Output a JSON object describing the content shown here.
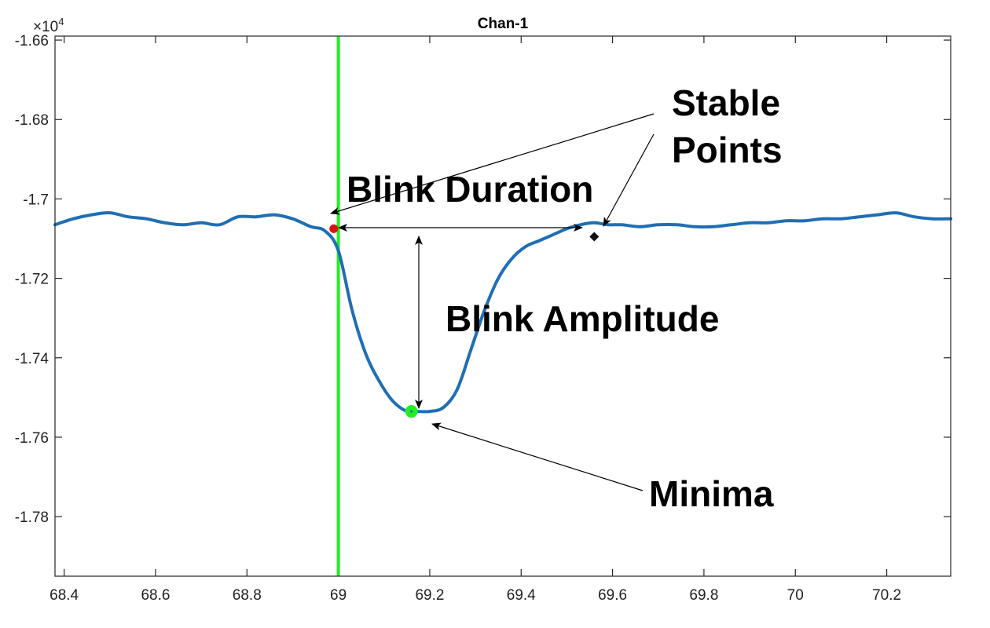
{
  "chart_data": {
    "type": "line",
    "title": "Chan-1",
    "xlabel": "",
    "ylabel": "",
    "xlim": [
      68.38,
      70.34
    ],
    "ylim": [
      -17.95,
      -16.59
    ],
    "y_scale_note": "×10",
    "y_scale_exponent": "4",
    "x_ticks": [
      68.4,
      68.6,
      68.8,
      69.0,
      69.2,
      69.4,
      69.6,
      69.8,
      70.0,
      70.2
    ],
    "x_tick_labels": [
      "68.4",
      "68.6",
      "68.8",
      "69",
      "69.2",
      "69.4",
      "69.6",
      "69.8",
      "70",
      "70.2"
    ],
    "y_ticks": [
      -16.6,
      -16.8,
      -17.0,
      -17.2,
      -17.4,
      -17.6,
      -17.8
    ],
    "y_tick_labels": [
      "-1.66",
      "-1.68",
      "-1.7",
      "-1.72",
      "-1.74",
      "-1.76",
      "-1.78"
    ],
    "grid": false,
    "series": [
      {
        "color": "#1f6eb4",
        "x": [
          68.38,
          68.42,
          68.46,
          68.5,
          68.54,
          68.58,
          68.62,
          68.66,
          68.7,
          68.74,
          68.78,
          68.82,
          68.86,
          68.9,
          68.94,
          68.97,
          69.0,
          69.03,
          69.06,
          69.09,
          69.12,
          69.15,
          69.17,
          69.2,
          69.23,
          69.26,
          69.29,
          69.32,
          69.35,
          69.38,
          69.41,
          69.44,
          69.47,
          69.5,
          69.53,
          69.56,
          69.59,
          69.62,
          69.66,
          69.7,
          69.74,
          69.78,
          69.82,
          69.86,
          69.9,
          69.94,
          69.98,
          70.02,
          70.06,
          70.1,
          70.14,
          70.18,
          70.22,
          70.26,
          70.3,
          70.34
        ],
        "y": [
          -17.065,
          -17.05,
          -17.04,
          -17.035,
          -17.045,
          -17.05,
          -17.06,
          -17.065,
          -17.06,
          -17.065,
          -17.045,
          -17.045,
          -17.04,
          -17.05,
          -17.07,
          -17.08,
          -17.13,
          -17.28,
          -17.39,
          -17.46,
          -17.51,
          -17.535,
          -17.535,
          -17.535,
          -17.525,
          -17.48,
          -17.38,
          -17.28,
          -17.2,
          -17.15,
          -17.12,
          -17.105,
          -17.09,
          -17.075,
          -17.065,
          -17.06,
          -17.065,
          -17.065,
          -17.07,
          -17.065,
          -17.065,
          -17.07,
          -17.07,
          -17.065,
          -17.06,
          -17.06,
          -17.055,
          -17.055,
          -17.05,
          -17.05,
          -17.045,
          -17.04,
          -17.035,
          -17.045,
          -17.05,
          -17.05
        ]
      }
    ],
    "vertical_line": {
      "x": 69.0,
      "color": "#22ee22"
    },
    "markers": [
      {
        "label": "stable-point-start",
        "x": 68.99,
        "y": -17.075,
        "color": "#dd1111"
      },
      {
        "label": "minima-point",
        "x": 69.16,
        "y": -17.535,
        "color": "#22ee22"
      },
      {
        "label": "stable-point-end",
        "x": 69.56,
        "y": -17.095,
        "color": "#111111"
      }
    ],
    "annotations": {
      "stable_points": [
        "Stable",
        "Points"
      ],
      "blink_duration": "Blink Duration",
      "blink_amplitude": "Blink Amplitude",
      "minima": "Minima"
    }
  }
}
